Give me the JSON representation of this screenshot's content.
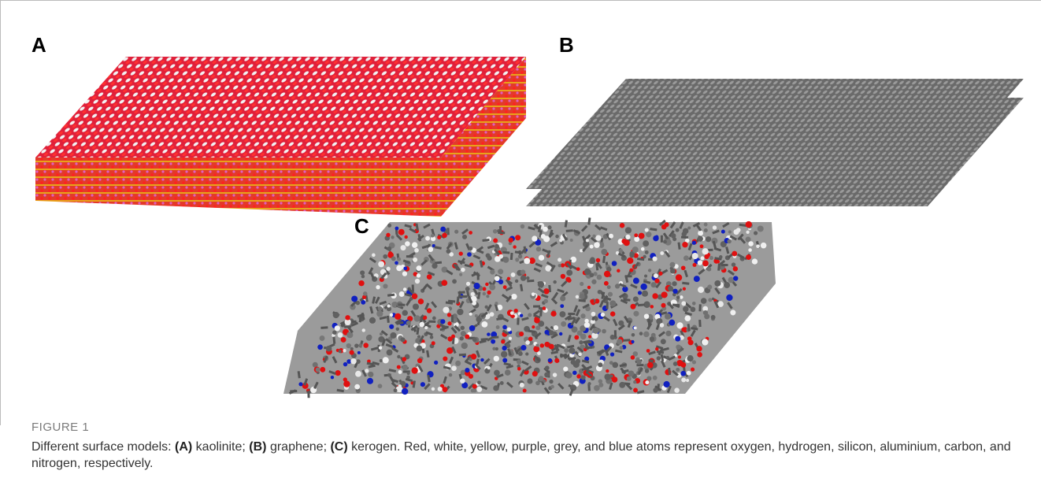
{
  "figure": {
    "panels": [
      "A",
      "B",
      "C"
    ],
    "label": "FIGURE 1",
    "caption": [
      "Different surface models: ",
      "(A)",
      " kaolinite; ",
      "(B)",
      " graphene; ",
      "(C)",
      " kerogen. Red, white, yellow, purple, grey, and blue atoms represent oxygen, hydrogen, silicon, aluminium, carbon, and nitrogen, respectively."
    ]
  }
}
